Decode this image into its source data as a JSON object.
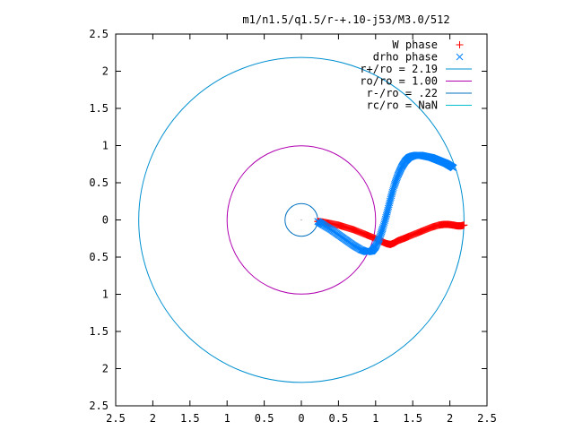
{
  "chart_data": {
    "type": "scatter",
    "title": "m1/n1.5/q1.5/r-+.10-j53/M3.0/512",
    "xlabel": "",
    "ylabel": "",
    "xlim": [
      -2.5,
      2.5
    ],
    "ylim": [
      -2.5,
      2.5
    ],
    "x_tick_labels": [
      "2.5",
      "2",
      "1.5",
      "1",
      "0.5",
      "0",
      "0.5",
      "1",
      "1.5",
      "2",
      "2.5"
    ],
    "y_tick_labels": [
      "2.5",
      "2",
      "1.5",
      "1",
      "0.5",
      "0",
      "0.5",
      "1",
      "1.5",
      "2",
      "2.5"
    ],
    "x_ticks": [
      -2.5,
      -2,
      -1.5,
      -1,
      -0.5,
      0,
      0.5,
      1,
      1.5,
      2,
      2.5
    ],
    "y_ticks": [
      2.5,
      2,
      1.5,
      1,
      0.5,
      0,
      -0.5,
      -1,
      -1.5,
      -2,
      -2.5
    ],
    "legend_position": "top-right",
    "series": [
      {
        "name": "W phase",
        "marker": "plus",
        "color": "#ff0000",
        "x": [
          0.22,
          0.3,
          0.4,
          0.5,
          0.6,
          0.7,
          0.8,
          0.9,
          1.0,
          1.08,
          1.15,
          1.2,
          1.25,
          1.3,
          1.38,
          1.45,
          1.55,
          1.65,
          1.75,
          1.85,
          1.92,
          1.98,
          2.05,
          2.1,
          2.15,
          2.19
        ],
        "y": [
          -0.02,
          -0.03,
          -0.05,
          -0.07,
          -0.1,
          -0.13,
          -0.17,
          -0.21,
          -0.25,
          -0.29,
          -0.32,
          -0.33,
          -0.31,
          -0.28,
          -0.25,
          -0.22,
          -0.18,
          -0.14,
          -0.1,
          -0.07,
          -0.06,
          -0.06,
          -0.07,
          -0.08,
          -0.08,
          -0.07
        ]
      },
      {
        "name": "drho phase",
        "marker": "cross",
        "color": "#0080ff",
        "x": [
          0.22,
          0.3,
          0.4,
          0.5,
          0.6,
          0.7,
          0.8,
          0.88,
          0.95,
          1.0,
          1.05,
          1.1,
          1.15,
          1.2,
          1.25,
          1.3,
          1.35,
          1.4,
          1.45,
          1.5,
          1.55,
          1.6,
          1.65,
          1.7,
          1.75,
          1.8,
          1.85,
          1.9,
          1.95,
          2.0,
          2.05
        ],
        "y": [
          -0.02,
          -0.07,
          -0.13,
          -0.2,
          -0.27,
          -0.34,
          -0.4,
          -0.43,
          -0.42,
          -0.36,
          -0.25,
          -0.1,
          0.08,
          0.28,
          0.46,
          0.6,
          0.71,
          0.79,
          0.84,
          0.86,
          0.87,
          0.87,
          0.86,
          0.85,
          0.84,
          0.82,
          0.8,
          0.78,
          0.76,
          0.73,
          0.7
        ]
      },
      {
        "name": "r+/ro = 2.19",
        "type": "circle",
        "color": "#0090d0",
        "radius": 2.19
      },
      {
        "name": "ro/ro = 1.00",
        "type": "circle",
        "color": "#b000b0",
        "radius": 1.0
      },
      {
        "name": "r-/ro = .22",
        "type": "circle",
        "color": "#0070c0",
        "radius": 0.22
      },
      {
        "name": "rc/ro = NaN",
        "type": "circle",
        "color": "#00c0d0",
        "radius": null
      }
    ]
  }
}
